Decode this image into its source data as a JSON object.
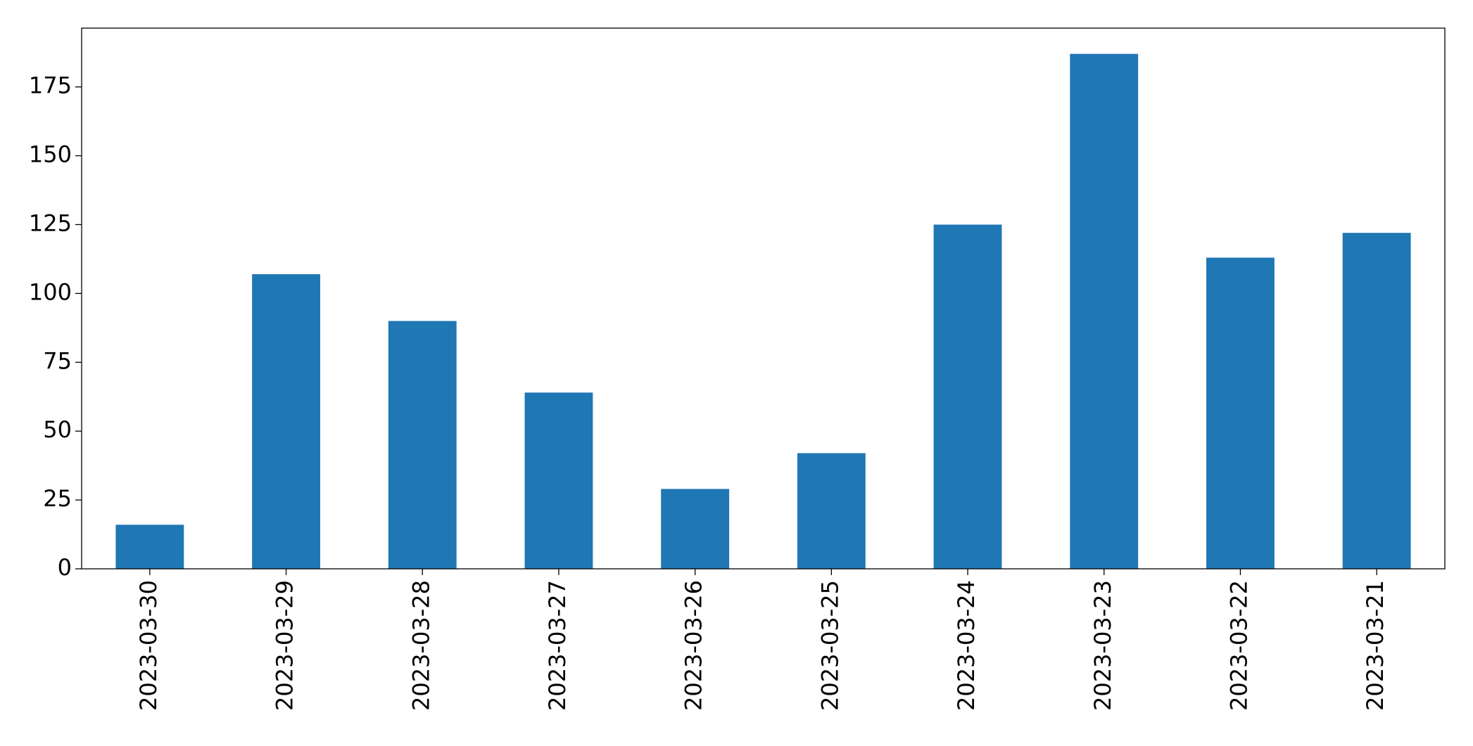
{
  "chart_data": {
    "type": "bar",
    "categories": [
      "2023-03-30",
      "2023-03-29",
      "2023-03-28",
      "2023-03-27",
      "2023-03-26",
      "2023-03-25",
      "2023-03-24",
      "2023-03-23",
      "2023-03-22",
      "2023-03-21"
    ],
    "values": [
      16,
      107,
      90,
      64,
      29,
      42,
      125,
      187,
      113,
      122
    ],
    "color": "#1f77b4",
    "ylim": [
      0,
      196.35
    ],
    "yticks": [
      0,
      25,
      50,
      75,
      100,
      125,
      150,
      175
    ],
    "grid": false
  }
}
